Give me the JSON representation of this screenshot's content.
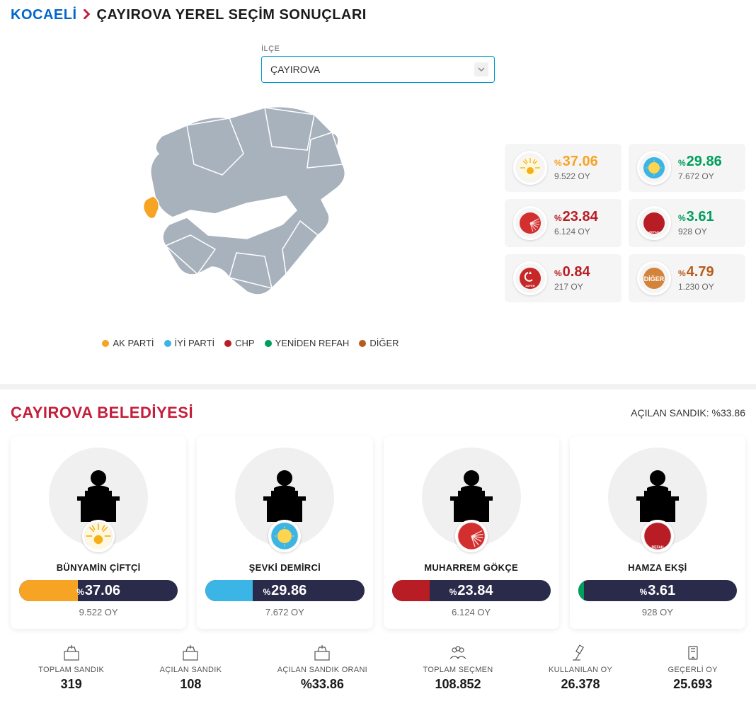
{
  "breadcrumb": {
    "parent": "KOCAELİ",
    "title": "ÇAYIROVA YEREL SEÇİM SONUÇLARI"
  },
  "selector": {
    "label": "İLÇE",
    "value": "ÇAYIROVA"
  },
  "colors": {
    "akp": "#f7a324",
    "iyi": "#3bb4e6",
    "chp": "#b81c24",
    "refah": "#009e5c",
    "diger": "#b85c1c",
    "zafer": "#c62828",
    "progress_bg": "#2a2a4a",
    "akp_pct": "#f7a324",
    "iyi_pct": "#009e5c",
    "chp_pct": "#b81c24",
    "refah_pct": "#009e5c",
    "zafer_pct": "#b81c24",
    "diger_pct": "#b85c1c"
  },
  "legend": [
    {
      "label": "AK PARTİ",
      "color": "#f7a324"
    },
    {
      "label": "İYİ PARTİ",
      "color": "#3bb4e6"
    },
    {
      "label": "CHP",
      "color": "#b81c24"
    },
    {
      "label": "YENİDEN REFAH",
      "color": "#009e5c"
    },
    {
      "label": "DİĞER",
      "color": "#b85c1c"
    }
  ],
  "party_results": [
    [
      {
        "party": "akp",
        "logo_text": "",
        "pct": "37.06",
        "votes": "9.522 OY",
        "color": "#f7a324"
      },
      {
        "party": "iyi",
        "logo_text": "",
        "pct": "29.86",
        "votes": "7.672 OY",
        "color": "#009e5c"
      }
    ],
    [
      {
        "party": "chp",
        "logo_text": "",
        "pct": "23.84",
        "votes": "6.124 OY",
        "color": "#b81c24"
      },
      {
        "party": "refah",
        "logo_text": "",
        "pct": "3.61",
        "votes": "928 OY",
        "color": "#009e5c"
      }
    ],
    [
      {
        "party": "zafer",
        "logo_text": "",
        "pct": "0.84",
        "votes": "217 OY",
        "color": "#b81c24"
      },
      {
        "party": "diger",
        "logo_text": "DİĞER",
        "pct": "4.79",
        "votes": "1.230 OY",
        "color": "#b85c1c"
      }
    ]
  ],
  "section": {
    "title": "ÇAYIROVA BELEDİYESİ",
    "sub": "AÇILAN SANDIK: %33.86"
  },
  "candidates": [
    {
      "name": "BÜNYAMİN ÇİFTÇİ",
      "party": "akp",
      "pct": "37.06",
      "votes": "9.522 OY",
      "fill_color": "#f7a324",
      "fill_width": 37.06
    },
    {
      "name": "ŞEVKİ DEMİRCİ",
      "party": "iyi",
      "pct": "29.86",
      "votes": "7.672 OY",
      "fill_color": "#3bb4e6",
      "fill_width": 29.86
    },
    {
      "name": "MUHARREM GÖKÇE",
      "party": "chp",
      "pct": "23.84",
      "votes": "6.124 OY",
      "fill_color": "#b81c24",
      "fill_width": 23.84
    },
    {
      "name": "HAMZA EKŞİ",
      "party": "refah",
      "pct": "3.61",
      "votes": "928 OY",
      "fill_color": "#009e5c",
      "fill_width": 3.61
    }
  ],
  "stats": [
    {
      "label": "TOPLAM SANDIK",
      "value": "319",
      "icon": "ballot"
    },
    {
      "label": "AÇILAN SANDIK",
      "value": "108",
      "icon": "ballot"
    },
    {
      "label": "AÇILAN SANDIK ORANI",
      "value": "%33.86",
      "icon": "ballot"
    },
    {
      "label": "TOPLAM SEÇMEN",
      "value": "108.852",
      "icon": "people"
    },
    {
      "label": "KULLANILAN OY",
      "value": "26.378",
      "icon": "gavel"
    },
    {
      "label": "GEÇERLİ OY",
      "value": "25.693",
      "icon": "ticket"
    }
  ]
}
